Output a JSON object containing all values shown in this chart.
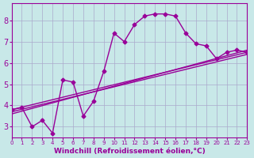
{
  "bg_color": "#c8e8e8",
  "line_color": "#990099",
  "grid_color": "#aaaacc",
  "xlabel": "Windchill (Refroidissement éolien,°C)",
  "xlabel_color": "#990099",
  "tick_color": "#990099",
  "xlim": [
    0,
    23
  ],
  "ylim": [
    2.5,
    8.8
  ],
  "yticks": [
    3,
    4,
    5,
    6,
    7,
    8
  ],
  "xticks": [
    0,
    1,
    2,
    3,
    4,
    5,
    6,
    7,
    8,
    9,
    10,
    11,
    12,
    13,
    14,
    15,
    16,
    17,
    18,
    19,
    20,
    21,
    22,
    23
  ],
  "curve1_x": [
    0,
    1,
    2,
    3,
    4,
    5,
    6,
    7,
    8,
    9,
    10,
    11,
    12,
    13,
    14,
    15,
    16,
    17,
    18,
    19,
    20,
    21,
    22,
    23
  ],
  "curve1_y": [
    3.8,
    3.9,
    3.0,
    3.3,
    2.7,
    5.2,
    5.1,
    3.5,
    4.2,
    5.6,
    7.4,
    7.0,
    7.8,
    8.2,
    8.3,
    8.3,
    8.2,
    7.4,
    6.9,
    6.8,
    6.2,
    6.5,
    6.6,
    6.5
  ],
  "curve2_x": [
    0,
    23
  ],
  "curve2_y": [
    3.8,
    6.5
  ],
  "curve3_x": [
    0,
    23
  ],
  "curve3_y": [
    3.6,
    6.6
  ],
  "curve4_x": [
    0,
    23
  ],
  "curve4_y": [
    3.7,
    6.4
  ]
}
